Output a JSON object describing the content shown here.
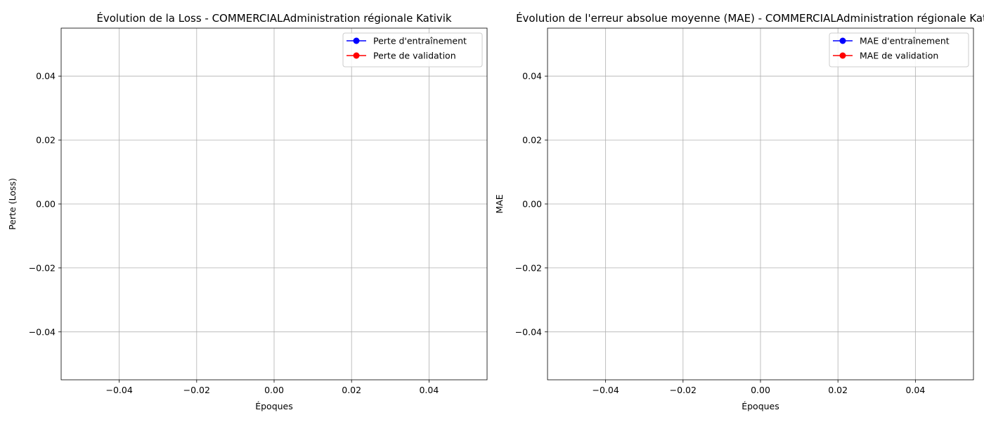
{
  "colors": {
    "train": "#0000ff",
    "validation": "#ff0000",
    "grid": "#b0b0b0",
    "axis": "#000000",
    "legend_border": "#cccccc"
  },
  "chart_data": [
    {
      "type": "line",
      "title": "Évolution de la Loss - COMMERCIALAdministration régionale Kativik",
      "xlabel": "Époques",
      "ylabel": "Perte (Loss)",
      "xlim": [
        -0.055,
        0.055
      ],
      "ylim": [
        -0.055,
        0.055
      ],
      "xticks": [
        -0.04,
        -0.02,
        0.0,
        0.02,
        0.04
      ],
      "xtick_labels": [
        "−0.04",
        "−0.02",
        "0.00",
        "0.02",
        "0.04"
      ],
      "yticks": [
        -0.04,
        -0.02,
        0.0,
        0.02,
        0.04
      ],
      "ytick_labels": [
        "−0.04",
        "−0.02",
        "0.00",
        "0.02",
        "0.04"
      ],
      "grid": true,
      "legend_position": "top-right",
      "series": [
        {
          "name": "Perte d'entraînement",
          "color": "#0000ff",
          "marker": "circle",
          "x": [],
          "y": []
        },
        {
          "name": "Perte de validation",
          "color": "#ff0000",
          "marker": "circle",
          "x": [],
          "y": []
        }
      ]
    },
    {
      "type": "line",
      "title": "Évolution de l'erreur absolue moyenne (MAE) - COMMERCIALAdministration régionale Kativik",
      "xlabel": "Époques",
      "ylabel": "MAE",
      "xlim": [
        -0.055,
        0.055
      ],
      "ylim": [
        -0.055,
        0.055
      ],
      "xticks": [
        -0.04,
        -0.02,
        0.0,
        0.02,
        0.04
      ],
      "xtick_labels": [
        "−0.04",
        "−0.02",
        "0.00",
        "0.02",
        "0.04"
      ],
      "yticks": [
        -0.04,
        -0.02,
        0.0,
        0.02,
        0.04
      ],
      "ytick_labels": [
        "−0.04",
        "−0.02",
        "0.00",
        "0.02",
        "0.04"
      ],
      "grid": true,
      "legend_position": "top-right",
      "series": [
        {
          "name": "MAE d'entraînement",
          "color": "#0000ff",
          "marker": "circle",
          "x": [],
          "y": []
        },
        {
          "name": "MAE de validation",
          "color": "#ff0000",
          "marker": "circle",
          "x": [],
          "y": []
        }
      ]
    }
  ]
}
